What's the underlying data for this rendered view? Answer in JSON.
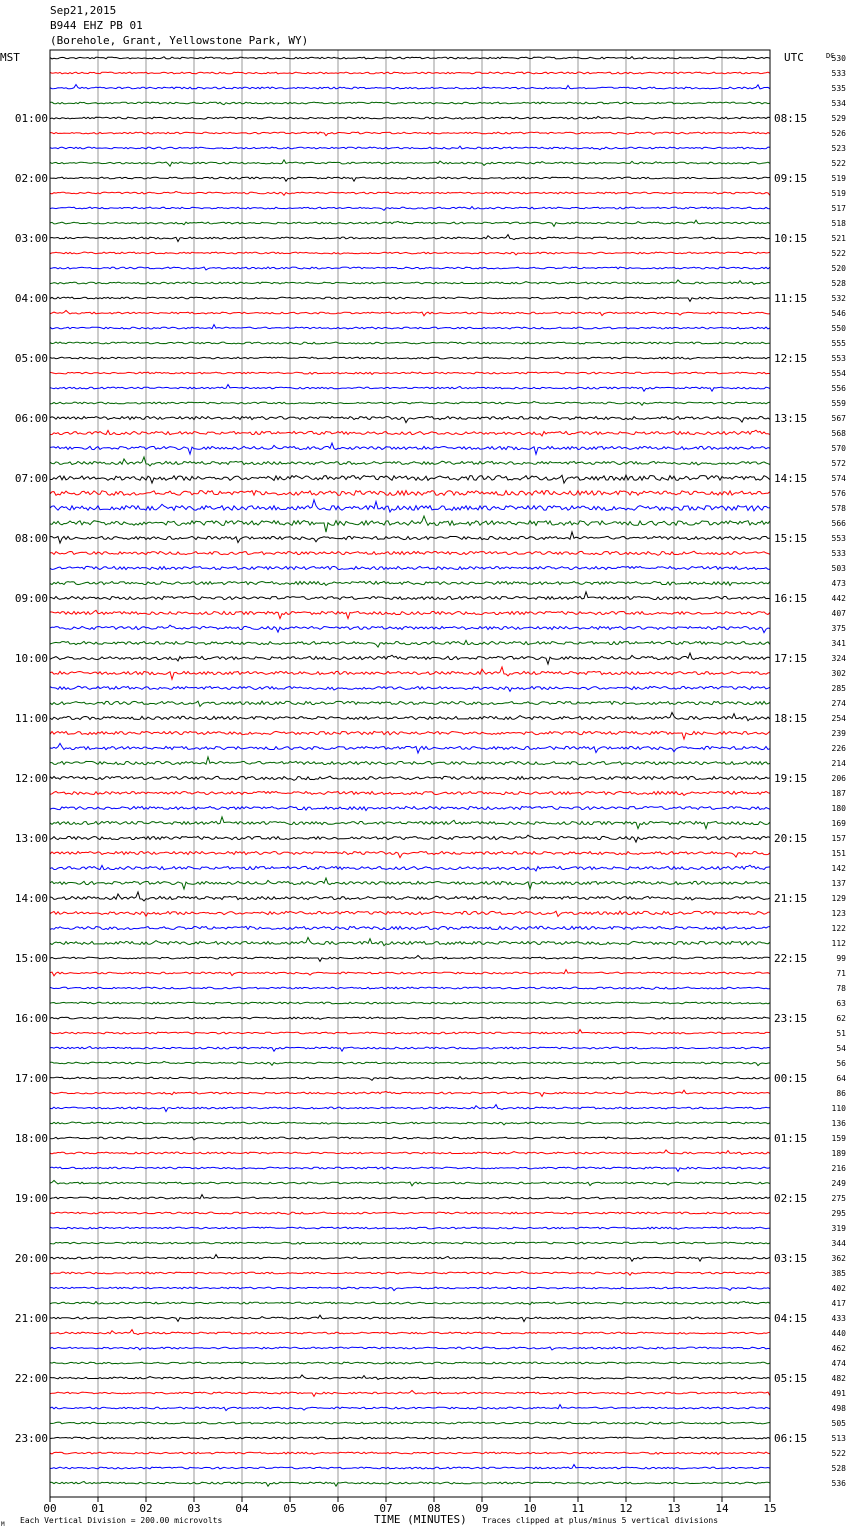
{
  "header": {
    "date": "Sep21,2015",
    "station": "B944 EHZ PB 01",
    "location": "(Borehole, Grant, Yellowstone Park, WY)"
  },
  "left_axis_label": "MST",
  "right_axis_label": "UTC",
  "dc_label": "DC",
  "footer": {
    "marker": "M",
    "scale_note": "Each Vertical Division =  200.00 microvolts",
    "time_label": "TIME (MINUTES)",
    "clip_note": "Traces clipped at plus/minus 5 vertical divisions"
  },
  "colors": {
    "trace_cycle": [
      "#000000",
      "#ff0000",
      "#0000ff",
      "#006400"
    ],
    "grid": "#999999"
  },
  "chart_data": {
    "type": "line",
    "title": "B944 EHZ PB 01",
    "xlabel": "TIME (MINUTES)",
    "x_ticks": [
      "00",
      "01",
      "02",
      "03",
      "04",
      "05",
      "06",
      "07",
      "08",
      "09",
      "10",
      "11",
      "12",
      "13",
      "14",
      "15"
    ],
    "xlim": [
      0,
      15
    ],
    "trace_count": 96,
    "trace_interval_minutes": 15,
    "left_hour_labels": [
      "01:00",
      "02:00",
      "03:00",
      "04:00",
      "05:00",
      "06:00",
      "07:00",
      "08:00",
      "09:00",
      "10:00",
      "11:00",
      "12:00",
      "13:00",
      "14:00",
      "15:00",
      "16:00",
      "17:00",
      "18:00",
      "19:00",
      "20:00",
      "21:00",
      "22:00",
      "23:00"
    ],
    "right_hour_labels": [
      "08:15",
      "09:15",
      "10:15",
      "11:15",
      "12:15",
      "13:15",
      "14:15",
      "15:15",
      "16:15",
      "17:15",
      "18:15",
      "19:15",
      "20:15",
      "21:15",
      "22:15",
      "23:15",
      "00:15",
      "01:15",
      "02:15",
      "03:15",
      "04:15",
      "05:15",
      "06:15"
    ],
    "dc_offsets": [
      "530",
      "533",
      "535",
      "534",
      "529",
      "526",
      "523",
      "522",
      "519",
      "519",
      "517",
      "518",
      "521",
      "522",
      "520",
      "528",
      "532",
      "546",
      "550",
      "555",
      "553",
      "554",
      "556",
      "559",
      "567",
      "568",
      "570",
      "572",
      "574",
      "576",
      "578",
      "566",
      "553",
      "533",
      "503",
      "473",
      "442",
      "407",
      "375",
      "341",
      "324",
      "302",
      "285",
      "274",
      "254",
      "239",
      "226",
      "214",
      "206",
      "187",
      "180",
      "169",
      "157",
      "151",
      "142",
      "137",
      "129",
      "123",
      "122",
      "112",
      "99",
      "71",
      "78",
      "63",
      "62",
      "51",
      "54",
      "56",
      "64",
      "86",
      "110",
      "136",
      "159",
      "189",
      "216",
      "249",
      "275",
      "295",
      "319",
      "344",
      "362",
      "385",
      "402",
      "417",
      "433",
      "440",
      "462",
      "474",
      "482",
      "491",
      "498",
      "505",
      "513",
      "522",
      "528",
      "536"
    ],
    "scale_microvolts_per_division": 200.0,
    "clip_divisions": 5
  }
}
